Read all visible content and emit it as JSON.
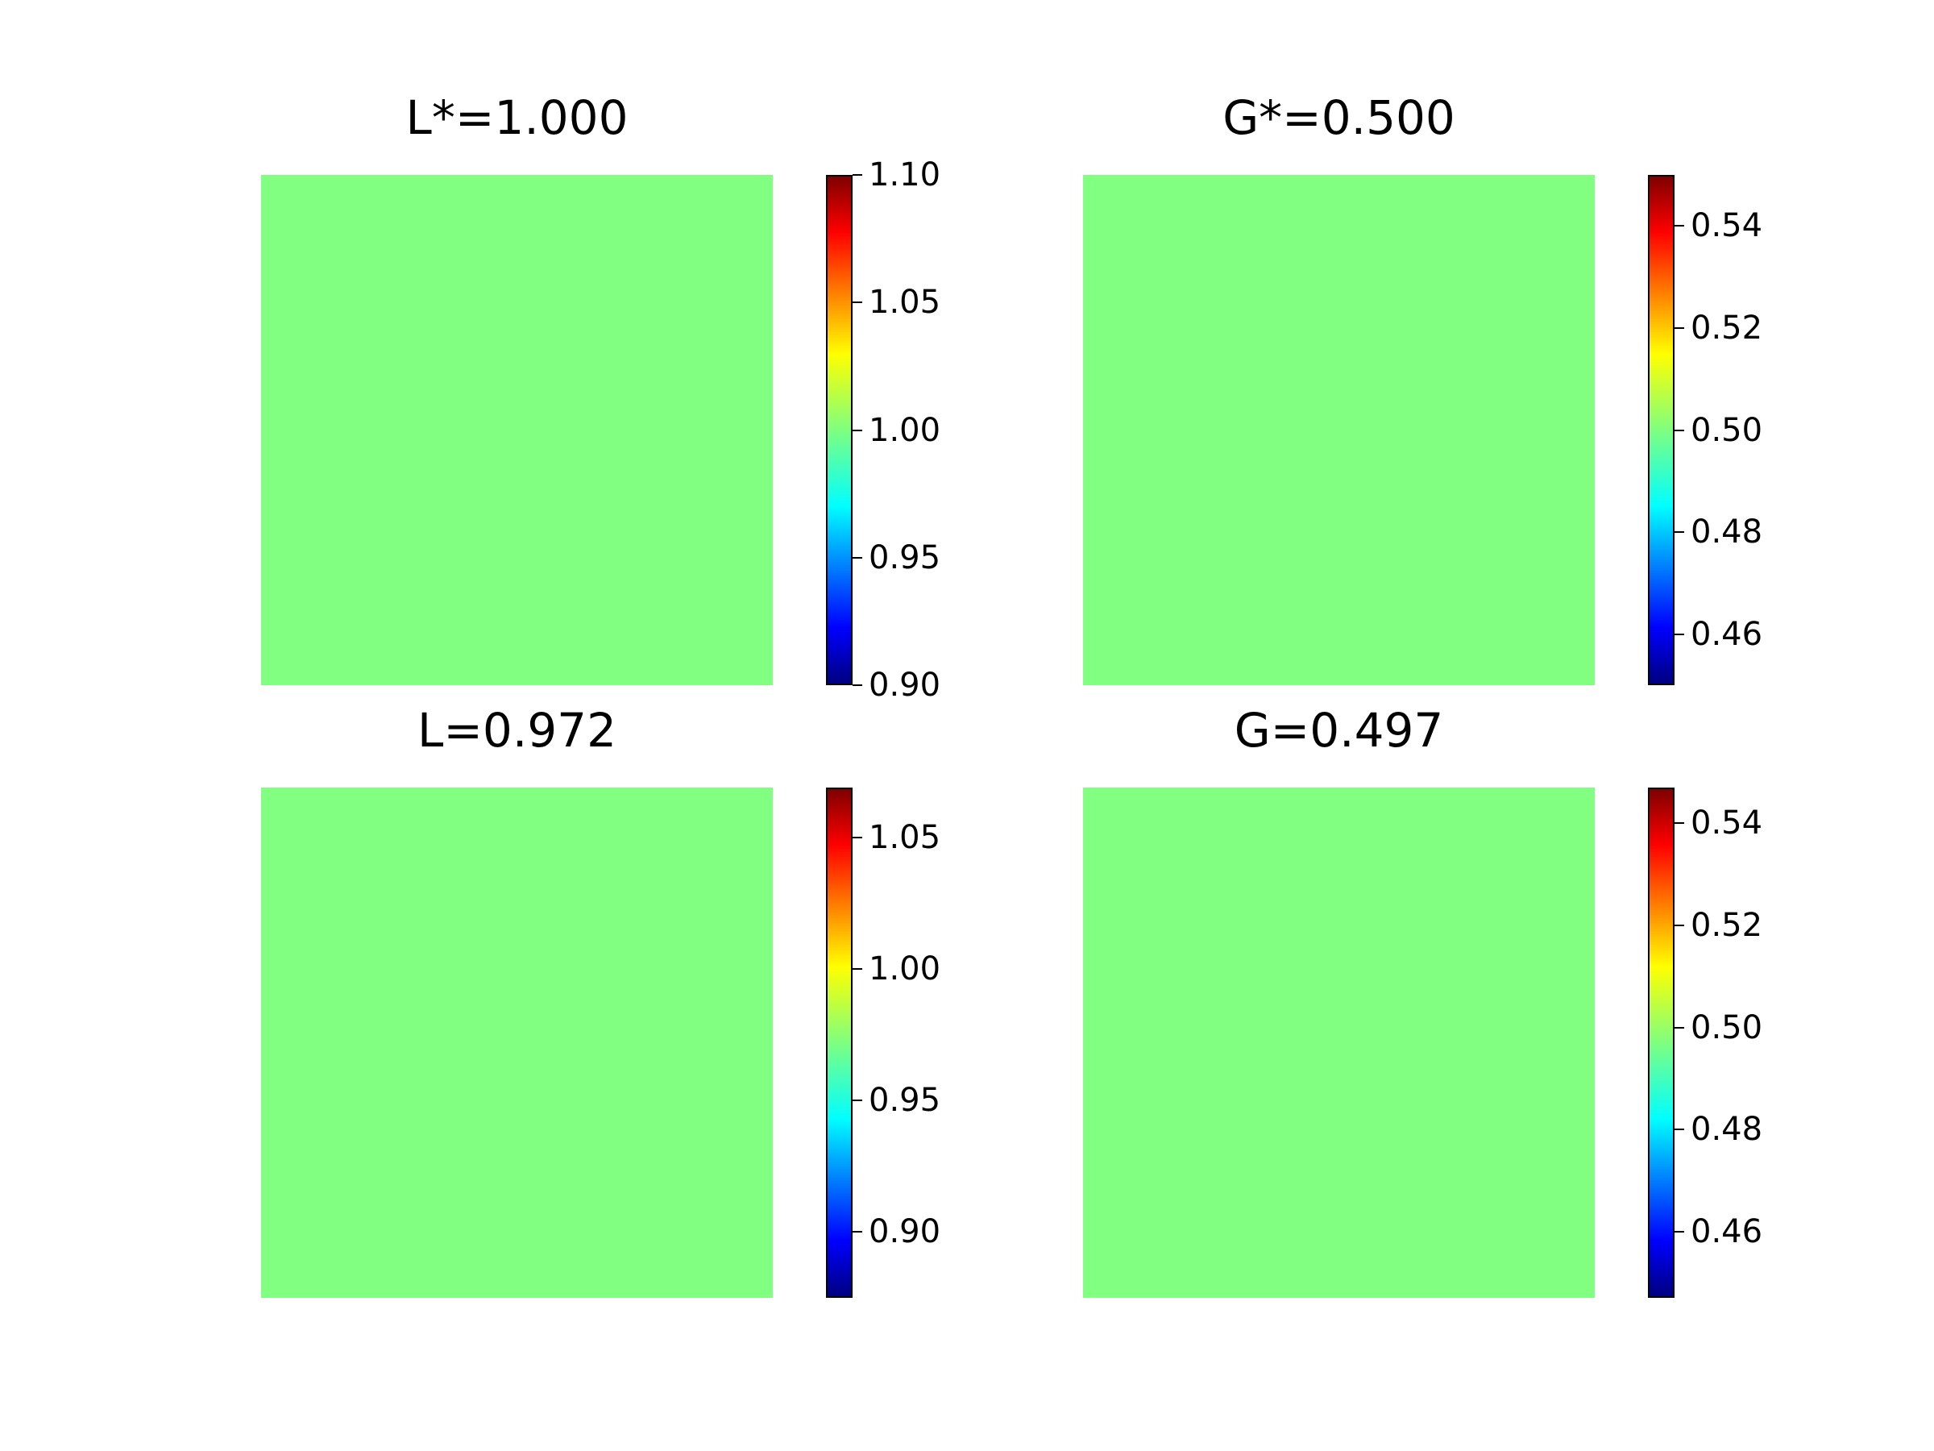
{
  "chart_data": [
    {
      "type": "heatmap",
      "title": "L*=1.000",
      "value": 1.0,
      "colormap": "jet",
      "cell_color": "#80ff80",
      "colorbar": {
        "range": [
          0.9,
          1.1
        ],
        "ticks": [
          0.9,
          0.95,
          1.0,
          1.05,
          1.1
        ],
        "tick_labels": [
          "0.90",
          "0.95",
          "1.00",
          "1.05",
          "1.10"
        ]
      }
    },
    {
      "type": "heatmap",
      "title": "G*=0.500",
      "value": 0.5,
      "colormap": "jet",
      "cell_color": "#80ff80",
      "colorbar": {
        "range": [
          0.45,
          0.55
        ],
        "ticks": [
          0.46,
          0.48,
          0.5,
          0.52,
          0.54
        ],
        "tick_labels": [
          "0.46",
          "0.48",
          "0.50",
          "0.52",
          "0.54"
        ]
      }
    },
    {
      "type": "heatmap",
      "title": "L=0.972",
      "value": 0.972,
      "colormap": "jet",
      "cell_color": "#80ff80",
      "colorbar": {
        "range": [
          0.875,
          1.069
        ],
        "ticks": [
          0.9,
          0.95,
          1.0,
          1.05
        ],
        "tick_labels": [
          "0.90",
          "0.95",
          "1.00",
          "1.05"
        ]
      }
    },
    {
      "type": "heatmap",
      "title": "G=0.497",
      "value": 0.497,
      "colormap": "jet",
      "cell_color": "#80ff80",
      "colorbar": {
        "range": [
          0.447,
          0.547
        ],
        "ticks": [
          0.46,
          0.48,
          0.5,
          0.52,
          0.54
        ],
        "tick_labels": [
          "0.46",
          "0.48",
          "0.50",
          "0.52",
          "0.54"
        ]
      }
    }
  ]
}
